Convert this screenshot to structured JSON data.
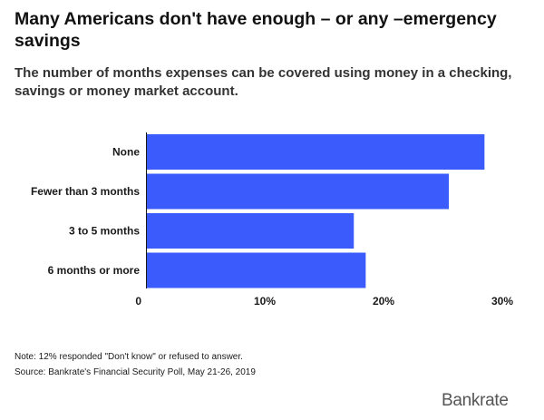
{
  "title": "Many Americans don't have enough – or any –emergency savings",
  "subtitle": "The number of months expenses can be covered using money in a checking, savings or money market account.",
  "chart_data": {
    "type": "bar",
    "orientation": "horizontal",
    "categories": [
      "None",
      "Fewer than 3 months",
      "3 to 5 months",
      "6 months or more"
    ],
    "values": [
      28.5,
      25.5,
      17.5,
      18.5
    ],
    "unit": "%",
    "xlim": [
      0,
      30
    ],
    "xticks": [
      {
        "value": 0,
        "label": "0"
      },
      {
        "value": 10,
        "label": "10%"
      },
      {
        "value": 20,
        "label": "20%"
      },
      {
        "value": 30,
        "label": "30%"
      }
    ],
    "bar_color": "#3b5bfd",
    "grid": false,
    "legend": "none"
  },
  "note": "Note: 12% responded \"Don't know\" or refused to answer.",
  "source": "Source: Bankrate's Financial Security Poll, May 21-26, 2019",
  "logo": "Bankrate"
}
